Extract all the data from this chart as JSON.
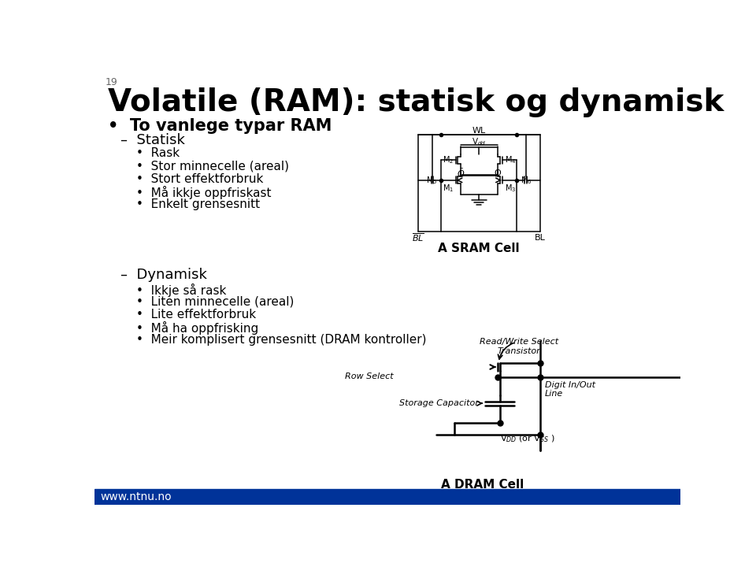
{
  "title": "Volatile (RAM): statisk og dynamisk",
  "slide_number": "19",
  "background_color": "#ffffff",
  "title_color": "#000000",
  "title_fontsize": 28,
  "footer_text": "www.ntnu.no",
  "footer_bg": "#003399",
  "bullet_main": "To vanlege typar RAM",
  "section1_header": "Statisk",
  "section1_bullets": [
    "Rask",
    "Stor minnecelle (areal)",
    "Stort effektforbruk",
    "Må ikkje oppfriskast",
    "Enkelt grensesnitt"
  ],
  "section2_header": "Dynamisk",
  "section2_bullets": [
    "Ikkje så rask",
    "Liten minnecelle (areal)",
    "Lite effektforbruk",
    "Må ha oppfrisking",
    "Meir komplisert grensesnitt (DRAM kontroller)"
  ],
  "sram_label": "A SRAM Cell",
  "dram_label": "A DRAM Cell",
  "text_color": "#000000",
  "footer_text_color": "#ffffff"
}
